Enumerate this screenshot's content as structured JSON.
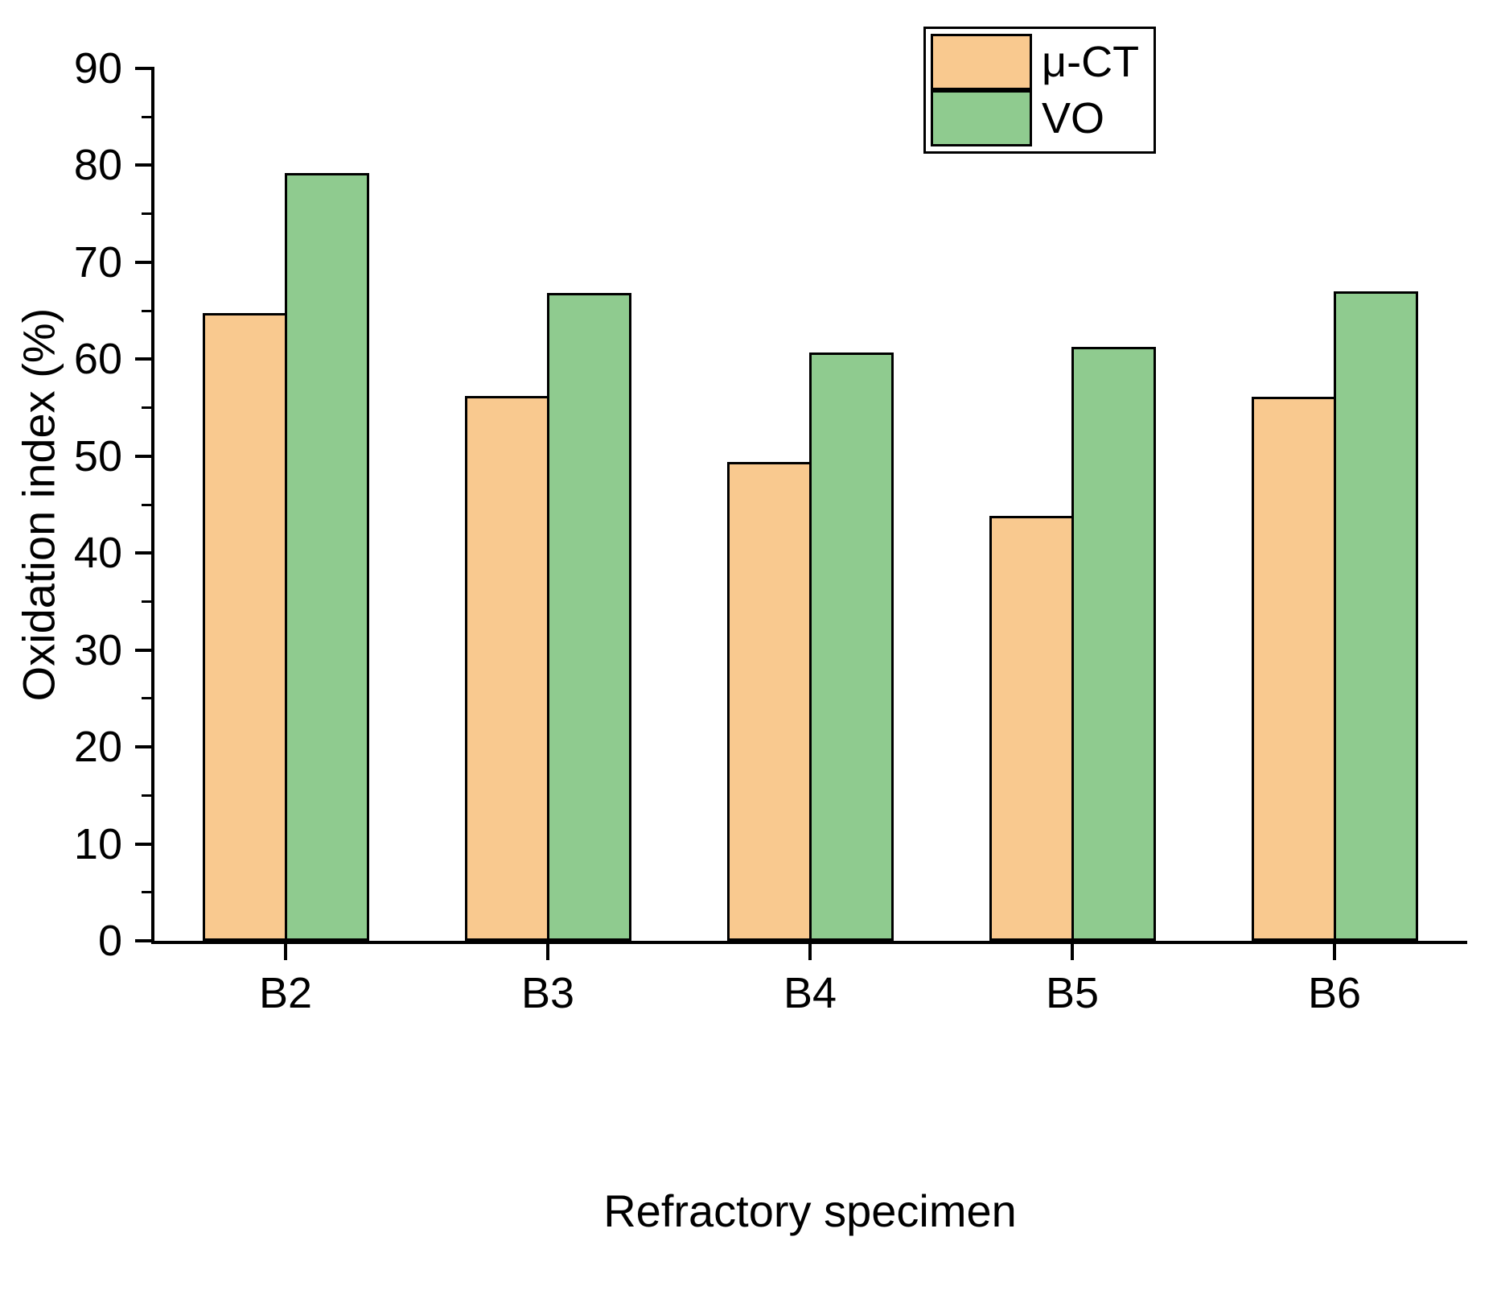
{
  "chart_data": {
    "type": "bar",
    "title": "",
    "xlabel": "Refractory specimen",
    "ylabel": "Oxidation index (%)",
    "categories": [
      "B2",
      "B3",
      "B4",
      "B5",
      "B6"
    ],
    "series": [
      {
        "name": "μ-CT",
        "color": "#F9C98F",
        "values": [
          64.8,
          56.2,
          49.4,
          43.8,
          56.1
        ]
      },
      {
        "name": "VO",
        "color": "#8FCB8F",
        "values": [
          79.2,
          66.8,
          60.7,
          61.3,
          67.0
        ]
      }
    ],
    "ylim": [
      0,
      90
    ],
    "yticks": [
      0,
      10,
      20,
      30,
      40,
      50,
      60,
      70,
      80,
      90
    ],
    "ytick_minor_step": 5,
    "grid": false,
    "legend_position": "top-right",
    "bar_border_color": "#000000",
    "axis_color": "#000000",
    "background_color": "#FFFFFF"
  }
}
